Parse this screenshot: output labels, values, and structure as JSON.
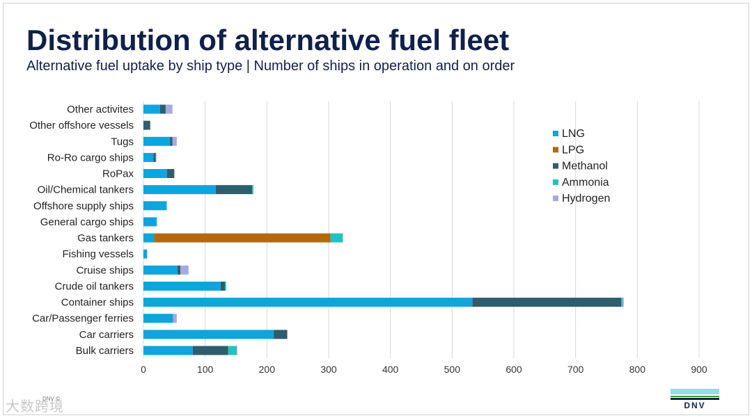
{
  "header": {
    "title": "Distribution of alternative fuel fleet",
    "subtitle": "Alternative fuel uptake by ship type | Number of ships in operation and on order"
  },
  "footer": {
    "small_text": "DNV ©",
    "watermark": "大数跨境",
    "logo_text": "DNV"
  },
  "chart_data": {
    "type": "bar",
    "orientation": "horizontal",
    "stacked": true,
    "categories": [
      "Other activites",
      "Other offshore vessels",
      "Tugs",
      "Ro-Ro cargo ships",
      "RoPax",
      "Oil/Chemical tankers",
      "Offshore supply ships",
      "General cargo ships",
      "Gas tankers",
      "Fishing vessels",
      "Cruise ships",
      "Crude oil tankers",
      "Container ships",
      "Car/Passenger ferries",
      "Car carriers",
      "Bulk carriers"
    ],
    "series": [
      {
        "name": "LNG",
        "color": "#0ea5de",
        "values": [
          27,
          0,
          43,
          16,
          38,
          117,
          37,
          21,
          17,
          6,
          55,
          125,
          533,
          48,
          211,
          80
        ]
      },
      {
        "name": "LPG",
        "color": "#b5690e",
        "values": [
          0,
          0,
          0,
          0,
          0,
          0,
          0,
          0,
          286,
          0,
          0,
          0,
          0,
          0,
          0,
          0
        ]
      },
      {
        "name": "Methanol",
        "color": "#2e5e6e",
        "values": [
          9,
          11,
          4,
          4,
          12,
          59,
          0,
          0,
          0,
          0,
          5,
          7,
          241,
          0,
          22,
          57
        ]
      },
      {
        "name": "Ammonia",
        "color": "#1fc3bf",
        "values": [
          0,
          0,
          0,
          0,
          0,
          2,
          1,
          1,
          20,
          0,
          0,
          2,
          2,
          0,
          0,
          14
        ]
      },
      {
        "name": "Hydrogen",
        "color": "#a5aadf",
        "values": [
          11,
          0,
          7,
          1,
          0,
          0,
          0,
          0,
          0,
          0,
          13,
          0,
          2,
          6,
          0,
          1
        ]
      }
    ],
    "xlim": [
      0,
      900
    ],
    "xticks": [
      0,
      100,
      200,
      300,
      400,
      500,
      600,
      700,
      800,
      900
    ],
    "grid": true,
    "legend_position": "right"
  }
}
